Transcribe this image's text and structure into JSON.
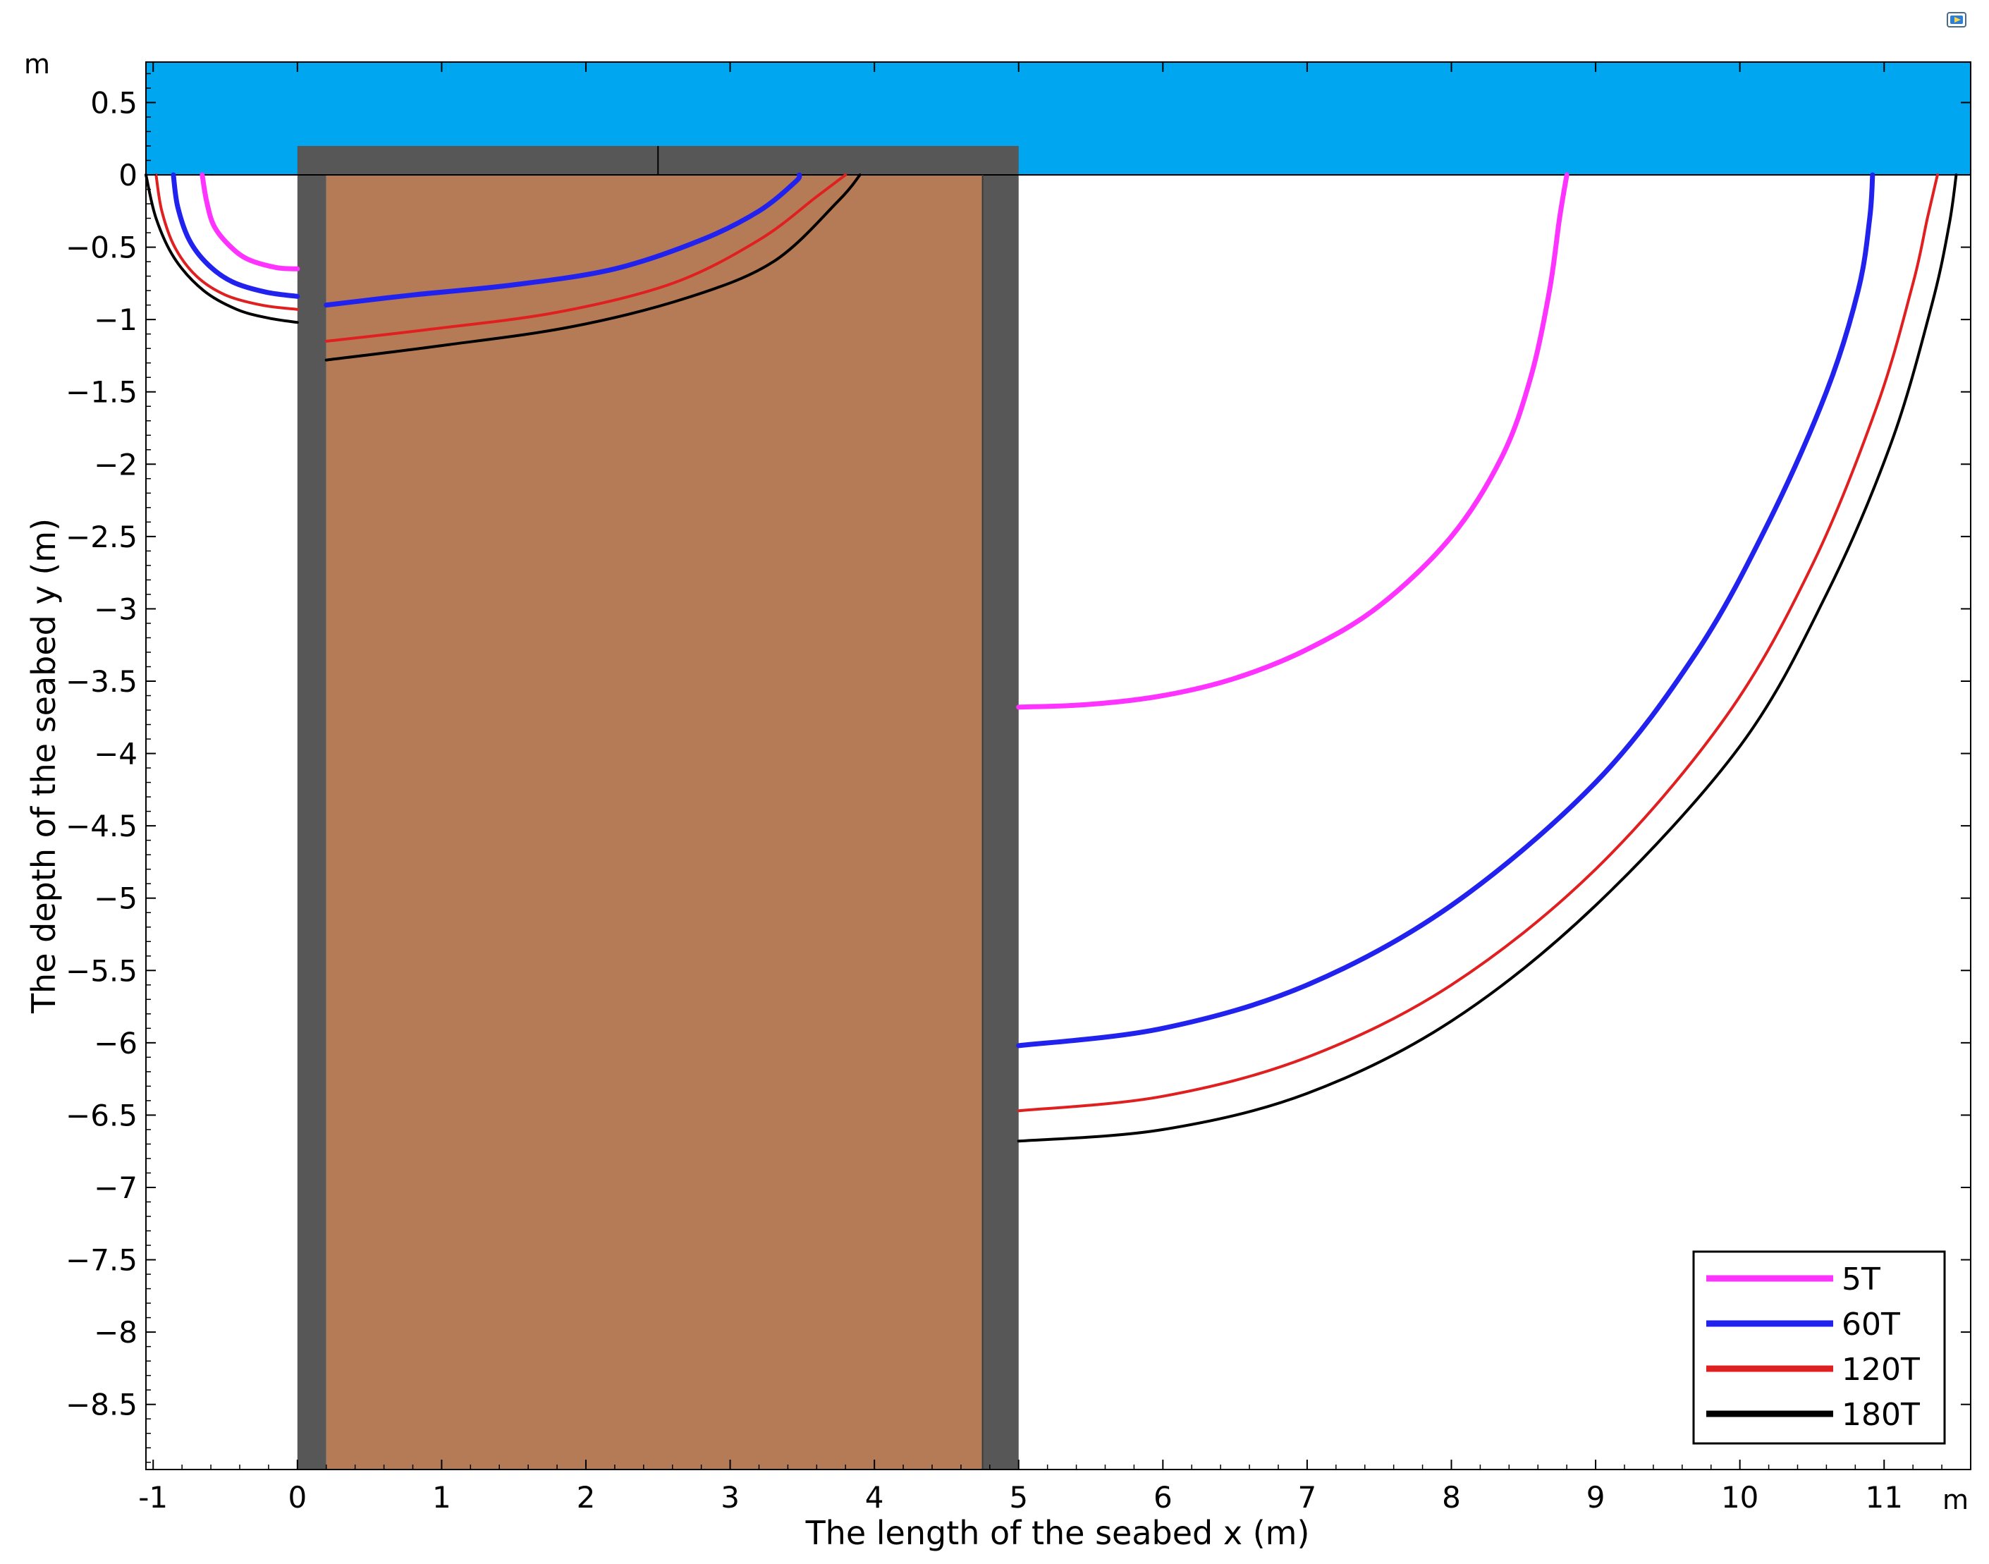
{
  "chart_data": {
    "type": "line",
    "xlabel": "The length of the seabed x (m)",
    "ylabel": "The depth of the seabed y (m)",
    "x_unit": "m",
    "y_unit": "m",
    "xlim": [
      -1.05,
      11.6
    ],
    "ylim": [
      -8.95,
      0.78
    ],
    "x_ticks": [
      -1,
      0,
      1,
      2,
      3,
      4,
      5,
      6,
      7,
      8,
      9,
      10,
      11
    ],
    "y_ticks": [
      0.5,
      0,
      -0.5,
      -1,
      -1.5,
      -2,
      -2.5,
      -3,
      -3.5,
      -4,
      -4.5,
      -5,
      -5.5,
      -6,
      -6.5,
      -7,
      -7.5,
      -8,
      -8.5
    ],
    "legend_position": "bottom-right",
    "regions": {
      "water": {
        "x": [
          -1.05,
          11.6
        ],
        "y": [
          0,
          0.78
        ],
        "color": "#00a6f0"
      },
      "cap": {
        "x": [
          0,
          5
        ],
        "y": [
          0,
          0.2
        ],
        "color": "#575757"
      },
      "left_wall": {
        "x": [
          0,
          0.2
        ],
        "y": [
          -8.95,
          0
        ],
        "color": "#575757"
      },
      "right_wall": {
        "x": [
          4.75,
          5
        ],
        "y": [
          -8.95,
          0
        ],
        "color": "#575757"
      },
      "soil_core": {
        "x": [
          0.2,
          4.75
        ],
        "y": [
          -8.95,
          0
        ],
        "color": "#b57b56"
      }
    },
    "series": [
      {
        "name": "5T",
        "color": "#ff33ff",
        "width": 7,
        "segments": [
          [
            [
              -0.66,
              0
            ],
            [
              -0.63,
              -0.18
            ],
            [
              -0.58,
              -0.35
            ],
            [
              -0.48,
              -0.48
            ],
            [
              -0.35,
              -0.58
            ],
            [
              -0.15,
              -0.64
            ],
            [
              0,
              -0.65
            ]
          ],
          [
            [
              5,
              -3.68
            ],
            [
              5.5,
              -3.66
            ],
            [
              6,
              -3.6
            ],
            [
              6.5,
              -3.48
            ],
            [
              7,
              -3.28
            ],
            [
              7.5,
              -2.98
            ],
            [
              8,
              -2.5
            ],
            [
              8.35,
              -1.95
            ],
            [
              8.55,
              -1.4
            ],
            [
              8.68,
              -0.8
            ],
            [
              8.75,
              -0.3
            ],
            [
              8.8,
              0
            ]
          ]
        ]
      },
      {
        "name": "60T",
        "color": "#2222ee",
        "width": 7,
        "segments": [
          [
            [
              -0.86,
              0
            ],
            [
              -0.83,
              -0.22
            ],
            [
              -0.75,
              -0.45
            ],
            [
              -0.62,
              -0.62
            ],
            [
              -0.45,
              -0.74
            ],
            [
              -0.22,
              -0.81
            ],
            [
              0,
              -0.84
            ]
          ],
          [
            [
              0.2,
              -0.9
            ],
            [
              0.8,
              -0.83
            ],
            [
              1.5,
              -0.76
            ],
            [
              2.2,
              -0.65
            ],
            [
              2.8,
              -0.45
            ],
            [
              3.2,
              -0.25
            ],
            [
              3.45,
              -0.05
            ],
            [
              3.48,
              0
            ]
          ],
          [
            [
              5,
              -6.02
            ],
            [
              6,
              -5.9
            ],
            [
              7,
              -5.6
            ],
            [
              8,
              -5.05
            ],
            [
              9,
              -4.2
            ],
            [
              9.7,
              -3.3
            ],
            [
              10.2,
              -2.4
            ],
            [
              10.6,
              -1.5
            ],
            [
              10.82,
              -0.8
            ],
            [
              10.9,
              -0.3
            ],
            [
              10.92,
              0
            ]
          ]
        ]
      },
      {
        "name": "120T",
        "color": "#e02020",
        "width": 4,
        "segments": [
          [
            [
              -0.98,
              0
            ],
            [
              -0.94,
              -0.25
            ],
            [
              -0.85,
              -0.5
            ],
            [
              -0.7,
              -0.7
            ],
            [
              -0.5,
              -0.83
            ],
            [
              -0.25,
              -0.9
            ],
            [
              0,
              -0.93
            ]
          ],
          [
            [
              0.2,
              -1.15
            ],
            [
              0.9,
              -1.07
            ],
            [
              1.8,
              -0.95
            ],
            [
              2.6,
              -0.75
            ],
            [
              3.2,
              -0.45
            ],
            [
              3.6,
              -0.15
            ],
            [
              3.8,
              0
            ]
          ],
          [
            [
              5,
              -6.47
            ],
            [
              6,
              -6.37
            ],
            [
              7,
              -6.1
            ],
            [
              8,
              -5.6
            ],
            [
              9,
              -4.8
            ],
            [
              9.9,
              -3.75
            ],
            [
              10.5,
              -2.7
            ],
            [
              10.95,
              -1.6
            ],
            [
              11.2,
              -0.75
            ],
            [
              11.3,
              -0.3
            ],
            [
              11.37,
              0
            ]
          ]
        ]
      },
      {
        "name": "180T",
        "color": "#000000",
        "width": 4,
        "segments": [
          [
            [
              -1.05,
              0
            ],
            [
              -0.98,
              -0.3
            ],
            [
              -0.85,
              -0.58
            ],
            [
              -0.65,
              -0.8
            ],
            [
              -0.42,
              -0.93
            ],
            [
              -0.2,
              -0.99
            ],
            [
              0,
              -1.02
            ]
          ],
          [
            [
              0.2,
              -1.28
            ],
            [
              1.0,
              -1.18
            ],
            [
              1.9,
              -1.05
            ],
            [
              2.7,
              -0.85
            ],
            [
              3.3,
              -0.6
            ],
            [
              3.75,
              -0.18
            ],
            [
              3.9,
              0
            ]
          ],
          [
            [
              5,
              -6.68
            ],
            [
              6,
              -6.6
            ],
            [
              7,
              -6.35
            ],
            [
              8,
              -5.85
            ],
            [
              9,
              -5.05
            ],
            [
              10,
              -3.95
            ],
            [
              10.6,
              -2.9
            ],
            [
              11.05,
              -1.85
            ],
            [
              11.33,
              -0.9
            ],
            [
              11.45,
              -0.35
            ],
            [
              11.5,
              0
            ]
          ]
        ]
      }
    ]
  }
}
